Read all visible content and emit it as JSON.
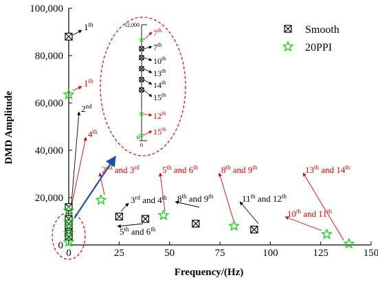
{
  "chart_data": {
    "type": "scatter",
    "xlabel": "Frequency/(Hz)",
    "ylabel": "DMD Amplitude",
    "xlim": [
      0,
      150
    ],
    "ylim": [
      0,
      100000
    ],
    "x_ticks": [
      "0",
      "25",
      "50",
      "75",
      "100",
      "125",
      "150"
    ],
    "y_ticks": [
      "0",
      "20,000",
      "40,000",
      "60,000",
      "80,000",
      "100,000"
    ],
    "legend_position": "top-right",
    "series": [
      {
        "name": "Smooth",
        "marker": "boxed-x",
        "color": "#000000",
        "points": [
          {
            "x": 0,
            "y": 88000
          },
          {
            "x": 0,
            "y": 16000
          },
          {
            "x": 0,
            "y": 11000
          },
          {
            "x": 0,
            "y": 9000
          },
          {
            "x": 0,
            "y": 7000
          },
          {
            "x": 0,
            "y": 5500
          },
          {
            "x": 0,
            "y": 4500
          },
          {
            "x": 0,
            "y": 3500
          },
          {
            "x": 25,
            "y": 12000
          },
          {
            "x": 38,
            "y": 11000
          },
          {
            "x": 63,
            "y": 9000
          },
          {
            "x": 92,
            "y": 6500
          }
        ]
      },
      {
        "name": "20PPI",
        "marker": "star",
        "color": "#22cc22",
        "points": [
          {
            "x": 0,
            "y": 63500
          },
          {
            "x": 0,
            "y": 14500
          },
          {
            "x": 0,
            "y": 9800
          },
          {
            "x": 0,
            "y": 5000
          },
          {
            "x": 0,
            "y": 1200
          },
          {
            "x": 16,
            "y": 19000
          },
          {
            "x": 47,
            "y": 12500
          },
          {
            "x": 82,
            "y": 8000
          },
          {
            "x": 128,
            "y": 4500
          },
          {
            "x": 139,
            "y": 500
          }
        ]
      }
    ],
    "annotations": [
      {
        "base": "1",
        "sup": "th",
        "suffix": "",
        "color": "#000000",
        "tx": 122,
        "ty": 44,
        "ax": 106,
        "ay": 51
      },
      {
        "base": "1",
        "sup": "th",
        "suffix": "",
        "color": "#dd0000",
        "tx": 122,
        "ty": 126,
        "ax": 106,
        "ay": 132
      },
      {
        "base": "2",
        "sup": "nd",
        "suffix": "",
        "color": "#000000",
        "tx": 118,
        "ty": 163,
        "ax": 104,
        "ay": 296
      },
      {
        "base": "4",
        "sup": "th",
        "suffix": "",
        "color": "#dd0000",
        "tx": 128,
        "ty": 200,
        "ax": 104,
        "ay": 300
      },
      {
        "base": "2",
        "sup": "nd",
        "suffix": " and 3",
        "sup2": "rd",
        "color": "#dd0000",
        "tx": 148,
        "ty": 252,
        "ax": 152,
        "ay": 284
      },
      {
        "base": "3",
        "sup": "rd",
        "suffix": " and 4",
        "sup2": "th",
        "color": "#000000",
        "tx": 190,
        "ty": 296,
        "ax": 176,
        "ay": 308
      },
      {
        "base": "5",
        "sup": "th",
        "suffix": " and 6",
        "sup2": "th",
        "color": "#dd0000",
        "tx": 236,
        "ty": 252,
        "ax": 240,
        "ay": 308
      },
      {
        "base": "5",
        "sup": "th",
        "suffix": " and 6",
        "sup2": "th",
        "color": "#000000",
        "tx": 174,
        "ty": 342,
        "ax": 208,
        "ay": 326
      },
      {
        "base": "8",
        "sup": "th",
        "suffix": " and 9",
        "sup2": "th",
        "color": "#000000",
        "tx": 258,
        "ty": 294,
        "ax": 290,
        "ay": 302
      },
      {
        "base": "8",
        "sup": "th",
        "suffix": " and 9",
        "sup2": "th",
        "color": "#dd0000",
        "tx": 322,
        "ty": 252,
        "ax": 340,
        "ay": 322
      },
      {
        "base": "11",
        "sup": "th",
        "suffix": " and 12",
        "sup2": "th",
        "color": "#000000",
        "tx": 352,
        "ty": 294,
        "ax": 376,
        "ay": 326
      },
      {
        "base": "13",
        "sup": "th",
        "suffix": " and 14",
        "sup2": "th",
        "color": "#dd0000",
        "tx": 444,
        "ty": 252,
        "ax": 500,
        "ay": 350
      },
      {
        "base": "10",
        "sup": "th",
        "suffix": " and 11",
        "sup2": "th",
        "color": "#dd0000",
        "tx": 418,
        "ty": 316,
        "ax": 468,
        "ay": 336
      }
    ],
    "inset": {
      "y_max_label": "12,000",
      "y_min_label": "0",
      "x_label": "0",
      "labels": [
        {
          "base": "7",
          "sup": "th",
          "color": "#dd0000",
          "ty": 52,
          "py": 58
        },
        {
          "base": "7",
          "sup": "th",
          "color": "#000000",
          "ty": 73,
          "py": 71
        },
        {
          "base": "10",
          "sup": "th",
          "color": "#000000",
          "ty": 93,
          "py": 84
        },
        {
          "base": "13",
          "sup": "th",
          "color": "#000000",
          "ty": 111,
          "py": 100
        },
        {
          "base": "14",
          "sup": "th",
          "color": "#000000",
          "ty": 128,
          "py": 116
        },
        {
          "base": "15",
          "sup": "th",
          "color": "#000000",
          "ty": 146,
          "py": 131
        },
        {
          "base": "12",
          "sup": "th",
          "color": "#dd0000",
          "ty": 173,
          "py": 166
        },
        {
          "base": "15",
          "sup": "th",
          "color": "#dd0000",
          "ty": 196,
          "py": 197
        }
      ]
    }
  }
}
